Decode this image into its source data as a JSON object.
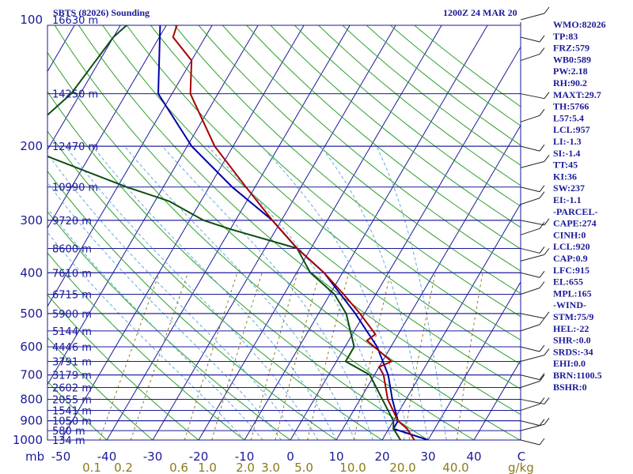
{
  "chart_data": {
    "type": "skew-t log-p sounding",
    "header": {
      "station": "SBTS (82026) Sounding",
      "time": "1200Z 24 MAR 20"
    },
    "pressure_levels_hpa": [
      100,
      200,
      300,
      400,
      500,
      600,
      700,
      800,
      900,
      1000
    ],
    "pressure_unit_label": "mb",
    "height_labels": [
      {
        "p": 100,
        "label": "16630 m"
      },
      {
        "p": 150,
        "label": "14250 m"
      },
      {
        "p": 200,
        "label": "12470 m"
      },
      {
        "p": 250,
        "label": "10990 m"
      },
      {
        "p": 300,
        "label": "9720 m"
      },
      {
        "p": 350,
        "label": "8600 m"
      },
      {
        "p": 400,
        "label": "7610 m"
      },
      {
        "p": 450,
        "label": "6715 m"
      },
      {
        "p": 500,
        "label": "5900 m"
      },
      {
        "p": 550,
        "label": "5144 m"
      },
      {
        "p": 600,
        "label": "4446 m"
      },
      {
        "p": 650,
        "label": "3791 m"
      },
      {
        "p": 700,
        "label": "3179 m"
      },
      {
        "p": 750,
        "label": "2602 m"
      },
      {
        "p": 800,
        "label": "2055 m"
      },
      {
        "p": 850,
        "label": "1541 m"
      },
      {
        "p": 900,
        "label": "1050 m"
      },
      {
        "p": 950,
        "label": "580 m"
      },
      {
        "p": 1000,
        "label": "134 m"
      }
    ],
    "temperature_ticks_c": [
      -50,
      -40,
      -30,
      -20,
      -10,
      0,
      10,
      20,
      30,
      40
    ],
    "temperature_tick_labels": [
      "-50",
      "-40",
      "-30",
      "-20",
      "-10",
      "0",
      "10",
      "20",
      "30",
      "40"
    ],
    "temperature_right_end_label": "C",
    "mixing_ratio_labels": [
      "0.1",
      "0.2",
      "0.6",
      "1.0",
      "2.0",
      "3.0",
      "5.0",
      "10.0",
      "20.0",
      "40.0"
    ],
    "mixing_ratio_unit": "g/kg",
    "temperature_c": [
      {
        "p": 100,
        "t": -78
      },
      {
        "p": 110,
        "t": -77
      },
      {
        "p": 125,
        "t": -70
      },
      {
        "p": 150,
        "t": -66
      },
      {
        "p": 200,
        "t": -54
      },
      {
        "p": 250,
        "t": -42
      },
      {
        "p": 300,
        "t": -32
      },
      {
        "p": 350,
        "t": -23
      },
      {
        "p": 400,
        "t": -14
      },
      {
        "p": 450,
        "t": -7
      },
      {
        "p": 500,
        "t": -1
      },
      {
        "p": 560,
        "t": 5
      },
      {
        "p": 580,
        "t": 4
      },
      {
        "p": 650,
        "t": 12
      },
      {
        "p": 670,
        "t": 10
      },
      {
        "p": 700,
        "t": 12
      },
      {
        "p": 800,
        "t": 16
      },
      {
        "p": 900,
        "t": 21
      },
      {
        "p": 940,
        "t": 24
      },
      {
        "p": 1000,
        "t": 27
      }
    ],
    "dewpoint_c": [
      {
        "p": 100,
        "t": -88
      },
      {
        "p": 110,
        "t": -90
      },
      {
        "p": 150,
        "t": -92
      },
      {
        "p": 200,
        "t": -98
      },
      {
        "p": 210,
        "t": -90
      },
      {
        "p": 250,
        "t": -68
      },
      {
        "p": 270,
        "t": -57
      },
      {
        "p": 300,
        "t": -47
      },
      {
        "p": 315,
        "t": -40
      },
      {
        "p": 350,
        "t": -23
      },
      {
        "p": 400,
        "t": -17
      },
      {
        "p": 450,
        "t": -9
      },
      {
        "p": 500,
        "t": -4
      },
      {
        "p": 600,
        "t": 2
      },
      {
        "p": 650,
        "t": 2
      },
      {
        "p": 700,
        "t": 9
      },
      {
        "p": 750,
        "t": 12
      },
      {
        "p": 900,
        "t": 20
      },
      {
        "p": 940,
        "t": 21
      },
      {
        "p": 1000,
        "t": 24
      }
    ],
    "parcel_c": [
      {
        "p": 100,
        "t": -82
      },
      {
        "p": 150,
        "t": -73
      },
      {
        "p": 200,
        "t": -59
      },
      {
        "p": 250,
        "t": -45
      },
      {
        "p": 300,
        "t": -32
      },
      {
        "p": 350,
        "t": -23
      },
      {
        "p": 400,
        "t": -14
      },
      {
        "p": 500,
        "t": -2
      },
      {
        "p": 600,
        "t": 7
      },
      {
        "p": 700,
        "t": 13
      },
      {
        "p": 800,
        "t": 17
      },
      {
        "p": 900,
        "t": 21
      },
      {
        "p": 940,
        "t": 21
      },
      {
        "p": 1000,
        "t": 30
      }
    ],
    "indices": [
      "WMO:82026",
      "TP:83",
      "FRZ:579",
      "WB0:589",
      "PW:2.18",
      "RH:90.2",
      "MAXT:29.7",
      "TH:5766",
      "L57:5.4",
      "LCL:957",
      "LI:-1.3",
      "SI:-1.4",
      "TT:45",
      "KI:36",
      "SW:237",
      "EI:-1.1",
      "-PARCEL-",
      "CAPE:274",
      "CINH:0",
      "LCL:920",
      "CAP:0.9",
      "LFC:915",
      "EL:655",
      "MPL:165",
      "-WIND-",
      "STM:75/9",
      "HEL:-22",
      "SHR-:0.0",
      "SRDS:-34",
      "EHI:0.0",
      "BRN:1100.5",
      "BSHR:0"
    ],
    "colors": {
      "isobar": "#1a1a99",
      "isotherm": "#1a1a99",
      "dry_adiabat": "#2ca02c",
      "moist_adiabat": "#66aadd",
      "mixing_ratio": "#8a7a1a",
      "temperature": "#a50000",
      "dewpoint": "#0d4d0d",
      "parcel": "#0000aa",
      "barbs": "#222222"
    },
    "grid": true,
    "legend": "right"
  }
}
